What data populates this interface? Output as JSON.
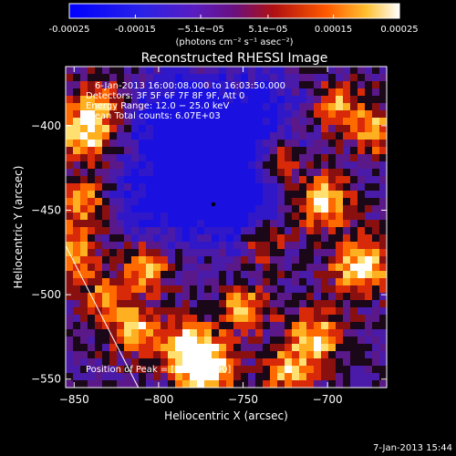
{
  "chart_data": {
    "type": "heatmap",
    "title": "Reconstructed RHESSI Image",
    "xlabel": "Heliocentric X (arcsec)",
    "ylabel": "Heliocentric Y (arcsec)",
    "xlim": [
      -855,
      -665
    ],
    "ylim": [
      -555,
      -365
    ],
    "x_ticks": [
      -850,
      -800,
      -750,
      -700
    ],
    "y_ticks": [
      -550,
      -500,
      -450,
      -400
    ],
    "colorbar": {
      "range": [
        -0.00025,
        0.00025
      ],
      "tick_values": [
        -0.00025,
        -0.00015,
        -5.1e-05,
        5.1e-05,
        0.00015,
        0.00025
      ],
      "tick_labels": [
        "-0.00025",
        "-0.00015",
        "−5.1e−05",
        "5.1e−05",
        "0.00015",
        "0.00025"
      ],
      "unit_label": "(photons cm⁻² s⁻¹ asec⁻²)"
    },
    "info_lines": [
      "6-Jan-2013 16:00:08.000 to 16:03:50.000",
      "Detectors: 3F 5F 6F 7F 8F 9F, Att 0",
      "Energy Range: 12.0 − 25.0 keV",
      "Clean     Total counts: 6.07E+03"
    ],
    "peak_label": "Position of Peak = [−870,−490]",
    "peak_position": [
      -870,
      -490
    ],
    "limb_line": [
      [
        -855,
        -471
      ],
      [
        -812,
        -555
      ]
    ],
    "timestamp": "7-Jan-2013 15:44"
  }
}
